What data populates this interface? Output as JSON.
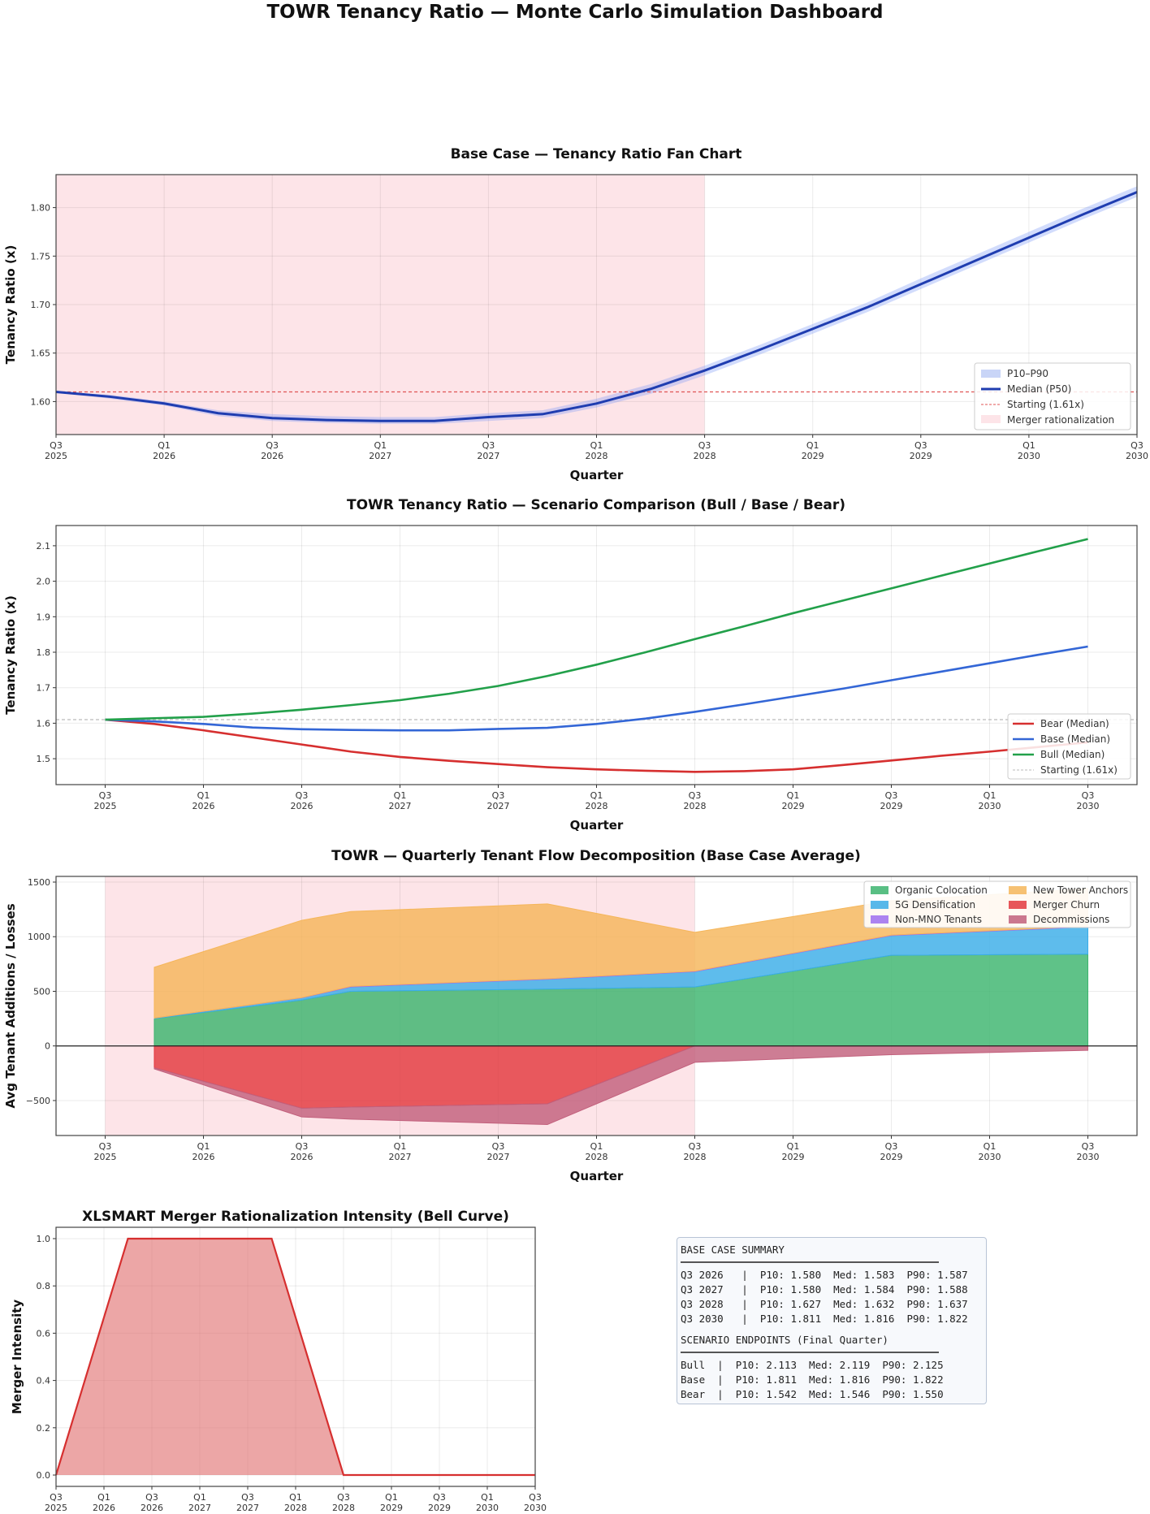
{
  "title": "TOWR Tenancy Ratio — Monte Carlo Simulation Dashboard",
  "x_ticks": [
    [
      "Q3",
      "2025"
    ],
    [
      "Q1",
      "2026"
    ],
    [
      "Q3",
      "2026"
    ],
    [
      "Q1",
      "2027"
    ],
    [
      "Q3",
      "2027"
    ],
    [
      "Q1",
      "2028"
    ],
    [
      "Q3",
      "2028"
    ],
    [
      "Q1",
      "2029"
    ],
    [
      "Q3",
      "2029"
    ],
    [
      "Q1",
      "2030"
    ],
    [
      "Q3",
      "2030"
    ]
  ],
  "chart_data": [
    {
      "type": "area",
      "title": "Base Case — Tenancy Ratio Fan Chart",
      "xlabel": "Quarter",
      "ylabel": "Tenancy Ratio (x)",
      "xlim": [
        0,
        20
      ],
      "ylim": [
        1.566,
        1.834
      ],
      "yticks": [
        1.6,
        1.65,
        1.7,
        1.75,
        1.8
      ],
      "ytick_labels": [
        "1.60",
        "1.65",
        "1.70",
        "1.75",
        "1.80"
      ],
      "shaded_region": [
        0,
        12
      ],
      "starting": 1.61,
      "legend": [
        "P10–P90",
        "Median (P50)",
        "Starting (1.61x)",
        "Merger rationalization"
      ],
      "legend_placement": "lower-right",
      "x": [
        0,
        1,
        2,
        3,
        4,
        5,
        6,
        7,
        8,
        9,
        10,
        11,
        12,
        13,
        14,
        15,
        16,
        17,
        18,
        19,
        20
      ],
      "p10": [
        1.61,
        1.603,
        1.596,
        1.585,
        1.58,
        1.578,
        1.577,
        1.577,
        1.58,
        1.583,
        1.594,
        1.608,
        1.627,
        1.648,
        1.67,
        1.692,
        1.716,
        1.74,
        1.764,
        1.788,
        1.811
      ],
      "median": [
        1.61,
        1.605,
        1.598,
        1.588,
        1.583,
        1.581,
        1.58,
        1.58,
        1.584,
        1.587,
        1.598,
        1.613,
        1.632,
        1.653,
        1.675,
        1.697,
        1.721,
        1.745,
        1.769,
        1.793,
        1.816
      ],
      "p90": [
        1.61,
        1.607,
        1.6,
        1.591,
        1.587,
        1.585,
        1.584,
        1.584,
        1.588,
        1.591,
        1.603,
        1.618,
        1.637,
        1.658,
        1.68,
        1.702,
        1.727,
        1.751,
        1.775,
        1.799,
        1.822
      ]
    },
    {
      "type": "line",
      "title": "TOWR Tenancy Ratio — Scenario Comparison (Bull / Base / Bear)",
      "xlabel": "Quarter",
      "ylabel": "Tenancy Ratio (x)",
      "xlim": [
        -1,
        21
      ],
      "ylim": [
        1.427,
        2.157
      ],
      "yticks": [
        1.5,
        1.6,
        1.7,
        1.8,
        1.9,
        2.0,
        2.1
      ],
      "ytick_labels": [
        "1.5",
        "1.6",
        "1.7",
        "1.8",
        "1.9",
        "2.0",
        "2.1"
      ],
      "starting": 1.61,
      "legend_placement": "lower-right",
      "starting_label": "Starting (1.61x)",
      "x": [
        0,
        1,
        2,
        3,
        4,
        5,
        6,
        7,
        8,
        9,
        10,
        11,
        12,
        13,
        14,
        15,
        16,
        17,
        18,
        19,
        20
      ],
      "series": [
        {
          "name": "Bear (Median)",
          "color": "#d62f2f",
          "values": [
            1.61,
            1.598,
            1.58,
            1.56,
            1.54,
            1.52,
            1.505,
            1.494,
            1.485,
            1.476,
            1.47,
            1.466,
            1.463,
            1.465,
            1.47,
            1.482,
            1.495,
            1.508,
            1.52,
            1.533,
            1.546
          ]
        },
        {
          "name": "Base (Median)",
          "color": "#3366d6",
          "values": [
            1.61,
            1.605,
            1.598,
            1.588,
            1.583,
            1.581,
            1.58,
            1.58,
            1.584,
            1.587,
            1.598,
            1.613,
            1.632,
            1.653,
            1.675,
            1.697,
            1.721,
            1.745,
            1.769,
            1.793,
            1.816
          ]
        },
        {
          "name": "Bull (Median)",
          "color": "#22a04a",
          "values": [
            1.61,
            1.614,
            1.618,
            1.627,
            1.638,
            1.651,
            1.665,
            1.683,
            1.705,
            1.733,
            1.765,
            1.8,
            1.837,
            1.873,
            1.91,
            1.945,
            1.98,
            2.015,
            2.05,
            2.085,
            2.119
          ]
        }
      ]
    },
    {
      "type": "area",
      "title": "TOWR — Quarterly Tenant Flow Decomposition (Base Case Average)",
      "xlabel": "Quarter",
      "ylabel": "Avg Tenant Additions / Losses",
      "xlim": [
        -1,
        21
      ],
      "ylim": [
        -820,
        1552
      ],
      "yticks": [
        -500,
        0,
        500,
        1000,
        1500
      ],
      "ytick_labels": [
        "−500",
        "0",
        "500",
        "1000",
        "1500"
      ],
      "shaded_region": [
        0,
        12
      ],
      "legend_placement": "top-right",
      "x": [
        1,
        4,
        5,
        9,
        12,
        16,
        20
      ],
      "positive_series": [
        {
          "name": "Organic Colocation",
          "color": "#3cb46e",
          "values": [
            250,
            420,
            500,
            520,
            540,
            830,
            840
          ]
        },
        {
          "name": "5G Densification",
          "color": "#3aade8",
          "values": [
            5,
            20,
            40,
            90,
            140,
            180,
            250
          ]
        },
        {
          "name": "Non-MNO Tenants",
          "color": "#9d6ff0",
          "values": [
            0,
            2,
            5,
            5,
            5,
            5,
            5
          ]
        },
        {
          "name": "New Tower Anchors",
          "color": "#f5b65a",
          "values": [
            465,
            708,
            685,
            685,
            355,
            315,
            345
          ]
        }
      ],
      "negative_series": [
        {
          "name": "Merger Churn",
          "color": "#e3393e",
          "values": [
            -200,
            -570,
            -560,
            -530,
            0,
            0,
            0
          ]
        },
        {
          "name": "Decommissions",
          "color": "#c2607c",
          "values": [
            -10,
            -80,
            -110,
            -190,
            -150,
            -80,
            -40
          ]
        }
      ],
      "legend_order": [
        "Organic Colocation",
        "5G Densification",
        "Non-MNO Tenants",
        "New Tower Anchors",
        "Merger Churn",
        "Decommissions"
      ]
    },
    {
      "type": "area",
      "title": "XLSMART Merger Rationalization Intensity (Bell Curve)",
      "xlabel": "",
      "ylabel": "Merger Intensity",
      "xlim": [
        0,
        20
      ],
      "ylim": [
        -0.048,
        1.048
      ],
      "yticks": [
        0.0,
        0.2,
        0.4,
        0.6,
        0.8,
        1.0
      ],
      "ytick_labels": [
        "0.0",
        "0.2",
        "0.4",
        "0.6",
        "0.8",
        "1.0"
      ],
      "x": [
        0,
        3,
        9,
        12,
        20
      ],
      "values": [
        0,
        1,
        1,
        0,
        0
      ],
      "color": "#d62f2f"
    }
  ],
  "summary": {
    "header": "BASE CASE SUMMARY",
    "rows": [
      "Q3 2026   |  P10: 1.580  Med: 1.583  P90: 1.587",
      "Q3 2027   |  P10: 1.580  Med: 1.584  P90: 1.588",
      "Q3 2028   |  P10: 1.627  Med: 1.632  P90: 1.637",
      "Q3 2030   |  P10: 1.811  Med: 1.816  P90: 1.822"
    ],
    "scenario_header": "SCENARIO ENDPOINTS (Final Quarter)",
    "scenario_rows": [
      "Bull  |  P10: 2.113  Med: 2.119  P90: 2.125",
      "Base  |  P10: 1.811  Med: 1.816  P90: 1.822",
      "Bear  |  P10: 1.542  Med: 1.546  P90: 1.550"
    ]
  }
}
